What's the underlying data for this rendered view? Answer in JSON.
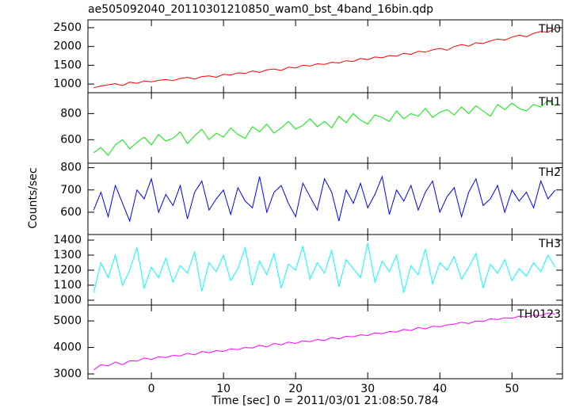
{
  "chart_data": [
    {
      "type": "line",
      "title": "ae505092040_20110301210850_wam0_bst_4band_16bin.qdp",
      "label": "TH0",
      "color": "#ff0000",
      "x": [
        -8,
        -7,
        -6,
        -5,
        -4,
        -3,
        -2,
        -1,
        0,
        1,
        2,
        3,
        4,
        5,
        6,
        7,
        8,
        9,
        10,
        11,
        12,
        13,
        14,
        15,
        16,
        17,
        18,
        19,
        20,
        21,
        22,
        23,
        24,
        25,
        26,
        27,
        28,
        29,
        30,
        31,
        32,
        33,
        34,
        35,
        36,
        37,
        38,
        39,
        40,
        41,
        42,
        43,
        44,
        45,
        46,
        47,
        48,
        49,
        50,
        51,
        52,
        53,
        54,
        55,
        56
      ],
      "values": [
        900,
        950,
        980,
        1010,
        960,
        1050,
        1020,
        1080,
        1060,
        1100,
        1120,
        1090,
        1150,
        1180,
        1130,
        1200,
        1220,
        1180,
        1260,
        1240,
        1300,
        1280,
        1350,
        1310,
        1380,
        1400,
        1360,
        1450,
        1430,
        1500,
        1480,
        1540,
        1520,
        1580,
        1560,
        1620,
        1600,
        1680,
        1650,
        1720,
        1700,
        1760,
        1740,
        1820,
        1790,
        1870,
        1850,
        1910,
        1950,
        1900,
        2000,
        2050,
        2010,
        2100,
        2080,
        2150,
        2200,
        2170,
        2250,
        2300,
        2260,
        2350,
        2400,
        2380,
        2480
      ],
      "xlim": [
        -8.8,
        57
      ],
      "ylim": [
        770,
        2710
      ],
      "yticks": [
        1000,
        1500,
        2000,
        2500
      ]
    },
    {
      "type": "line",
      "label": "TH1",
      "color": "#00ee00",
      "x": [
        -8,
        -7,
        -6,
        -5,
        -4,
        -3,
        -2,
        -1,
        0,
        1,
        2,
        3,
        4,
        5,
        6,
        7,
        8,
        9,
        10,
        11,
        12,
        13,
        14,
        15,
        16,
        17,
        18,
        19,
        20,
        21,
        22,
        23,
        24,
        25,
        26,
        27,
        28,
        29,
        30,
        31,
        32,
        33,
        34,
        35,
        36,
        37,
        38,
        39,
        40,
        41,
        42,
        43,
        44,
        45,
        46,
        47,
        48,
        49,
        50,
        51,
        52,
        53,
        54,
        55,
        56
      ],
      "values": [
        500,
        540,
        480,
        560,
        600,
        530,
        580,
        620,
        560,
        640,
        590,
        610,
        660,
        570,
        630,
        680,
        600,
        650,
        620,
        690,
        640,
        610,
        700,
        660,
        720,
        650,
        690,
        740,
        680,
        710,
        760,
        700,
        740,
        690,
        780,
        730,
        800,
        750,
        720,
        790,
        770,
        740,
        820,
        760,
        800,
        780,
        840,
        770,
        810,
        830,
        790,
        850,
        800,
        860,
        820,
        780,
        870,
        830,
        880,
        840,
        820,
        870,
        850,
        900,
        860
      ],
      "xlim": [
        -8.8,
        57
      ],
      "ylim": [
        420,
        960
      ],
      "yticks": [
        600,
        800
      ]
    },
    {
      "type": "line",
      "label": "TH2",
      "color": "#0000ff",
      "ylabel": "Counts/sec",
      "x": [
        -8,
        -7,
        -6,
        -5,
        -4,
        -3,
        -2,
        -1,
        0,
        1,
        2,
        3,
        4,
        5,
        6,
        7,
        8,
        9,
        10,
        11,
        12,
        13,
        14,
        15,
        16,
        17,
        18,
        19,
        20,
        21,
        22,
        23,
        24,
        25,
        26,
        27,
        28,
        29,
        30,
        31,
        32,
        33,
        34,
        35,
        36,
        37,
        38,
        39,
        40,
        41,
        42,
        43,
        44,
        45,
        46,
        47,
        48,
        49,
        50,
        51,
        52,
        53,
        54,
        55,
        56
      ],
      "values": [
        610,
        690,
        580,
        720,
        640,
        560,
        700,
        660,
        750,
        600,
        680,
        630,
        720,
        570,
        690,
        740,
        610,
        660,
        700,
        590,
        710,
        650,
        620,
        760,
        600,
        690,
        720,
        640,
        580,
        730,
        670,
        610,
        750,
        690,
        560,
        700,
        640,
        730,
        620,
        680,
        760,
        590,
        700,
        650,
        720,
        610,
        690,
        740,
        600,
        670,
        710,
        580,
        690,
        750,
        630,
        660,
        720,
        600,
        700,
        650,
        690,
        620,
        740,
        660,
        700
      ],
      "xlim": [
        -8.8,
        57
      ],
      "ylim": [
        500,
        820
      ],
      "yticks": [
        600,
        700,
        800
      ]
    },
    {
      "type": "line",
      "label": "TH3",
      "color": "#00ffff",
      "x": [
        -8,
        -7,
        -6,
        -5,
        -4,
        -3,
        -2,
        -1,
        0,
        1,
        2,
        3,
        4,
        5,
        6,
        7,
        8,
        9,
        10,
        11,
        12,
        13,
        14,
        15,
        16,
        17,
        18,
        19,
        20,
        21,
        22,
        23,
        24,
        25,
        26,
        27,
        28,
        29,
        30,
        31,
        32,
        33,
        34,
        35,
        36,
        37,
        38,
        39,
        40,
        41,
        42,
        43,
        44,
        45,
        46,
        47,
        48,
        49,
        50,
        51,
        52,
        53,
        54,
        55,
        56
      ],
      "values": [
        1050,
        1250,
        1150,
        1300,
        1100,
        1200,
        1350,
        1080,
        1220,
        1150,
        1280,
        1120,
        1230,
        1180,
        1320,
        1060,
        1250,
        1190,
        1300,
        1130,
        1210,
        1350,
        1100,
        1260,
        1170,
        1310,
        1080,
        1240,
        1200,
        1360,
        1140,
        1250,
        1180,
        1330,
        1090,
        1270,
        1210,
        1150,
        1380,
        1120,
        1260,
        1190,
        1300,
        1050,
        1230,
        1170,
        1340,
        1110,
        1250,
        1200,
        1290,
        1140,
        1220,
        1310,
        1080,
        1240,
        1180,
        1270,
        1130,
        1210,
        1160,
        1250,
        1190,
        1300,
        1220
      ],
      "xlim": [
        -8.8,
        57
      ],
      "ylim": [
        968,
        1437
      ],
      "yticks": [
        1000,
        1100,
        1200,
        1300,
        1400
      ]
    },
    {
      "type": "line",
      "label": "TH0123",
      "color": "#ff00ff",
      "xlabel": "Time [sec] 0 = 2011/03/01 21:08:50.784",
      "x": [
        -8,
        -7,
        -6,
        -5,
        -4,
        -3,
        -2,
        -1,
        0,
        1,
        2,
        3,
        4,
        5,
        6,
        7,
        8,
        9,
        10,
        11,
        12,
        13,
        14,
        15,
        16,
        17,
        18,
        19,
        20,
        21,
        22,
        23,
        24,
        25,
        26,
        27,
        28,
        29,
        30,
        31,
        32,
        33,
        34,
        35,
        36,
        37,
        38,
        39,
        40,
        41,
        42,
        43,
        44,
        45,
        46,
        47,
        48,
        49,
        50,
        51,
        52,
        53,
        54,
        55,
        56
      ],
      "values": [
        3150,
        3350,
        3300,
        3450,
        3350,
        3500,
        3480,
        3600,
        3550,
        3650,
        3620,
        3700,
        3680,
        3780,
        3720,
        3850,
        3800,
        3880,
        3850,
        3950,
        3920,
        4000,
        3980,
        4080,
        4020,
        4150,
        4100,
        4200,
        4150,
        4250,
        4220,
        4300,
        4260,
        4380,
        4320,
        4420,
        4400,
        4480,
        4450,
        4550,
        4520,
        4600,
        4580,
        4680,
        4640,
        4750,
        4700,
        4800,
        4780,
        4850,
        4880,
        4950,
        4900,
        5000,
        4980,
        5080,
        5050,
        5120,
        5100,
        5180,
        5150,
        5220,
        5200,
        5300,
        5260
      ],
      "xlim": [
        -8.8,
        57
      ],
      "ylim": [
        2820,
        5600
      ],
      "yticks": [
        3000,
        4000,
        5000
      ],
      "xticks": [
        0,
        10,
        20,
        30,
        40,
        50
      ]
    }
  ]
}
